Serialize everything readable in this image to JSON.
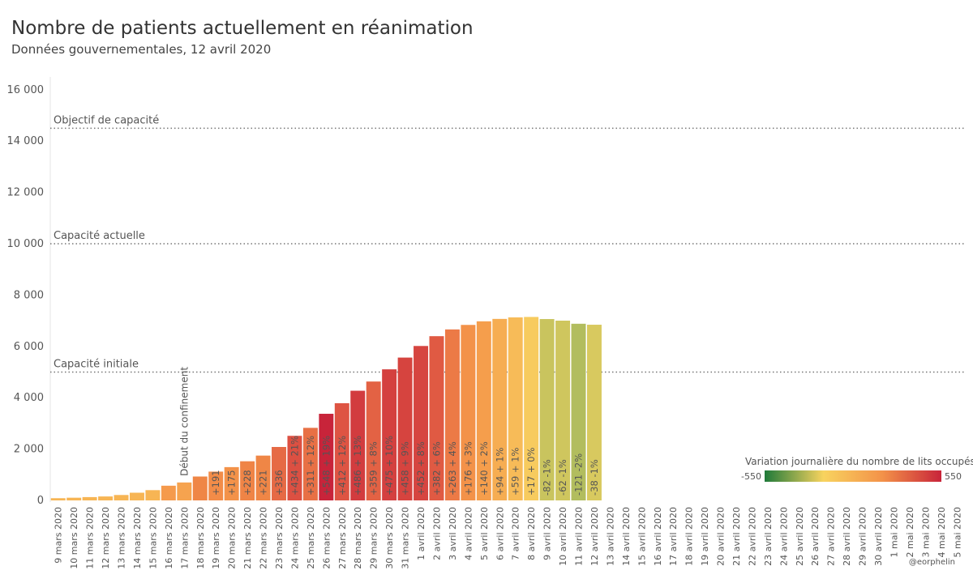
{
  "chart_data": {
    "type": "bar",
    "title": "Nombre de patients actuellement en réanimation",
    "subtitle": "Données gouvernementales, 12 avril 2020",
    "categories": [
      "9 mars 2020",
      "10 mars 2020",
      "11 mars 2020",
      "12 mars 2020",
      "13 mars 2020",
      "14 mars 2020",
      "15 mars 2020",
      "16 mars 2020",
      "17 mars 2020",
      "18 mars 2020",
      "19 mars 2020",
      "20 mars 2020",
      "21 mars 2020",
      "22 mars 2020",
      "23 mars 2020",
      "24 mars 2020",
      "25 mars 2020",
      "26 mars 2020",
      "27 mars 2020",
      "28 mars 2020",
      "29 mars 2020",
      "30 mars 2020",
      "31 mars 2020",
      "1 avril 2020",
      "2 avril 2020",
      "3 avril 2020",
      "4 avril 2020",
      "5 avril 2020",
      "6 avril 2020",
      "7 avril 2020",
      "8 avril 2020",
      "9 avril 2020",
      "10 avril 2020",
      "11 avril 2020",
      "12 avril 2020",
      "13 avril 2020",
      "14 avril 2020",
      "15 avril 2020",
      "16 avril 2020",
      "17 avril 2020",
      "18 avril 2020",
      "19 avril 2020",
      "20 avril 2020",
      "21 avril 2020",
      "22 avril 2020",
      "23 avril 2020",
      "24 avril 2020",
      "25 avril 2020",
      "26 avril 2020",
      "27 avril 2020",
      "28 avril 2020",
      "29 avril 2020",
      "30 avril 2020",
      "1 mai 2020",
      "2 mai 2020",
      "3 mai 2020",
      "4 mai 2020",
      "5 mai 2020"
    ],
    "values": [
      86,
      105,
      129,
      154,
      211,
      300,
      400,
      573,
      699,
      931,
      1122,
      1297,
      1525,
      1746,
      2082,
      2516,
      2827,
      3375,
      3787,
      4273,
      4632,
      5107,
      5565,
      6017,
      6399,
      6662,
      6838,
      6978,
      7072,
      7131,
      7148,
      7066,
      7004,
      6883,
      6845,
      null,
      null,
      null,
      null,
      null,
      null,
      null,
      null,
      null,
      null,
      null,
      null,
      null,
      null,
      null,
      null,
      null,
      null,
      null,
      null,
      null,
      null,
      null
    ],
    "bar_labels": [
      null,
      null,
      null,
      null,
      null,
      null,
      null,
      null,
      null,
      null,
      "+191",
      "+175",
      "+228",
      "+221",
      "+336",
      "+434 + 21%",
      "+311 + 12%",
      "+548 + 19%",
      "+412 + 12%",
      "+486 + 13%",
      "+359 + 8%",
      "+475 + 10%",
      "+458 + 9%",
      "+452 + 8%",
      "+382 + 6%",
      "+263 + 4%",
      "+176 + 3%",
      "+140 + 2%",
      "+94 + 1%",
      "+59 + 1%",
      "+17 + 0%",
      "-82 -1%",
      "-62 -1%",
      "-121 -2%",
      "-38 -1%",
      null,
      null,
      null,
      null,
      null,
      null,
      null,
      null,
      null,
      null,
      null,
      null,
      null,
      null,
      null,
      null,
      null,
      null,
      null,
      null,
      null,
      null,
      null
    ],
    "colors": [
      "#f7b554",
      "#f7b554",
      "#f7b554",
      "#f7b554",
      "#f7b554",
      "#f7b554",
      "#f7b554",
      "#f59a4c",
      "#f6a34f",
      "#ef8646",
      "#f28c48",
      "#f39249",
      "#ef8446",
      "#ef8646",
      "#e66a45",
      "#dc5042",
      "#e87045",
      "#c8243a",
      "#de5443",
      "#d23c3f",
      "#e36244",
      "#d4403f",
      "#d6443f",
      "#d64540",
      "#e05a43",
      "#ec7a46",
      "#f39249",
      "#f59e4c",
      "#f6ad52",
      "#f7bb58",
      "#f7cb5e",
      "#c9c45e",
      "#cfc65e",
      "#b2bd5e",
      "#d8c95f",
      null,
      null,
      null,
      null,
      null,
      null,
      null,
      null,
      null,
      null,
      null,
      null,
      null,
      null,
      null,
      null,
      null,
      null,
      null,
      null,
      null,
      null,
      null
    ],
    "ylim": [
      0,
      16500
    ],
    "yticks": [
      0,
      {
        "value": 2000,
        "label": "2 000"
      },
      {
        "value": 4000,
        "label": "4 000"
      },
      {
        "value": 6000,
        "label": "6 000"
      },
      {
        "value": 8000,
        "label": "8 000"
      },
      {
        "value": 10000,
        "label": "10 000"
      },
      {
        "value": 12000,
        "label": "12 000"
      },
      {
        "value": 14000,
        "label": "14 000"
      },
      {
        "value": 16000,
        "label": "16 000"
      }
    ],
    "reference_lines": [
      {
        "value": 5000,
        "label": "Capacité initiale"
      },
      {
        "value": 10000,
        "label": "Capacité actuelle"
      },
      {
        "value": 14500,
        "label": "Objectif de capacité"
      }
    ],
    "annotation": {
      "text": "Début du confinement",
      "category_index": 8
    },
    "legend": {
      "title": "Variation journalière du nombre de lits occupés",
      "min": -550,
      "max": 550,
      "colors": [
        "#1f7a3a",
        "#f8d35f",
        "#f39249",
        "#c8243a"
      ]
    },
    "credit": "@eorphelin",
    "grid": false
  }
}
